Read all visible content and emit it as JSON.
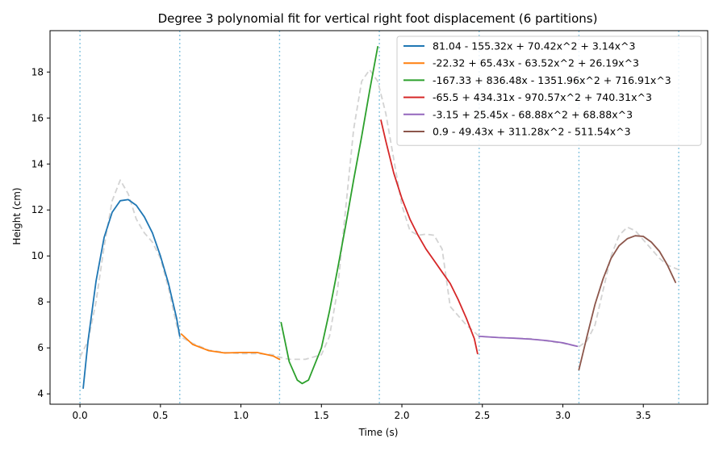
{
  "chart_data": {
    "type": "line",
    "title": "Degree 3 polynomial fit for vertical right foot displacement (6 partitions)",
    "xlabel": "Time (s)",
    "ylabel": "Height (cm)",
    "xlim": [
      -0.186,
      3.9
    ],
    "ylim": [
      3.55,
      19.8
    ],
    "xticks": [
      "0.0",
      "0.5",
      "1.0",
      "1.5",
      "2.0",
      "2.5",
      "3.0",
      "3.5"
    ],
    "yticks": [
      "4",
      "6",
      "8",
      "10",
      "12",
      "14",
      "16",
      "18"
    ],
    "xtick_values": [
      0,
      0.5,
      1.0,
      1.5,
      2.0,
      2.5,
      3.0,
      3.5
    ],
    "ytick_values": [
      4,
      6,
      8,
      10,
      12,
      14,
      16,
      18
    ],
    "partition_boundaries": [
      0.0,
      0.62,
      1.24,
      1.86,
      2.48,
      3.1,
      3.72
    ],
    "legend_position": "upper right",
    "grid": false,
    "raw_signal": {
      "color": "#d3d3d3",
      "style": "dashed",
      "points": [
        [
          0.0,
          5.6
        ],
        [
          0.05,
          6.3
        ],
        [
          0.1,
          8.0
        ],
        [
          0.15,
          10.4
        ],
        [
          0.2,
          12.4
        ],
        [
          0.25,
          13.3
        ],
        [
          0.3,
          12.7
        ],
        [
          0.35,
          11.6
        ],
        [
          0.4,
          11.0
        ],
        [
          0.45,
          10.6
        ],
        [
          0.5,
          9.9
        ],
        [
          0.55,
          8.6
        ],
        [
          0.6,
          7.0
        ],
        [
          0.62,
          6.5
        ],
        [
          0.7,
          6.2
        ],
        [
          0.8,
          5.9
        ],
        [
          0.9,
          5.8
        ],
        [
          1.0,
          5.75
        ],
        [
          1.1,
          5.75
        ],
        [
          1.2,
          5.7
        ],
        [
          1.24,
          5.6
        ],
        [
          1.3,
          5.5
        ],
        [
          1.4,
          5.5
        ],
        [
          1.5,
          5.7
        ],
        [
          1.55,
          6.5
        ],
        [
          1.6,
          8.5
        ],
        [
          1.65,
          12.0
        ],
        [
          1.7,
          15.5
        ],
        [
          1.75,
          17.6
        ],
        [
          1.8,
          18.1
        ],
        [
          1.85,
          17.6
        ],
        [
          1.9,
          16.2
        ],
        [
          1.95,
          14.2
        ],
        [
          2.0,
          12.2
        ],
        [
          2.05,
          11.1
        ],
        [
          2.1,
          10.9
        ],
        [
          2.15,
          10.95
        ],
        [
          2.2,
          10.9
        ],
        [
          2.25,
          10.3
        ],
        [
          2.3,
          7.8
        ],
        [
          2.35,
          7.4
        ],
        [
          2.4,
          7.0
        ],
        [
          2.48,
          6.5
        ],
        [
          2.6,
          6.45
        ],
        [
          2.8,
          6.4
        ],
        [
          3.0,
          6.2
        ],
        [
          3.1,
          6.05
        ],
        [
          3.15,
          6.3
        ],
        [
          3.2,
          7.0
        ],
        [
          3.25,
          8.5
        ],
        [
          3.3,
          10.0
        ],
        [
          3.35,
          10.9
        ],
        [
          3.4,
          11.25
        ],
        [
          3.45,
          11.1
        ],
        [
          3.5,
          10.7
        ],
        [
          3.55,
          10.3
        ],
        [
          3.6,
          9.9
        ],
        [
          3.65,
          9.6
        ],
        [
          3.72,
          9.4
        ]
      ]
    },
    "series": [
      {
        "name": "81.04 - 155.32x + 70.42x^2 + 3.14x^3",
        "color": "#1f77b4",
        "points": [
          [
            0.02,
            4.25
          ],
          [
            0.05,
            6.3
          ],
          [
            0.1,
            8.9
          ],
          [
            0.15,
            10.8
          ],
          [
            0.2,
            11.9
          ],
          [
            0.25,
            12.4
          ],
          [
            0.3,
            12.45
          ],
          [
            0.35,
            12.2
          ],
          [
            0.4,
            11.7
          ],
          [
            0.45,
            11.0
          ],
          [
            0.5,
            10.0
          ],
          [
            0.55,
            8.8
          ],
          [
            0.6,
            7.3
          ],
          [
            0.62,
            6.5
          ]
        ]
      },
      {
        "name": "-22.32 + 65.43x - 63.52x^2 + 26.19x^3",
        "color": "#ff7f0e",
        "points": [
          [
            0.63,
            6.6
          ],
          [
            0.7,
            6.15
          ],
          [
            0.8,
            5.88
          ],
          [
            0.9,
            5.78
          ],
          [
            1.0,
            5.8
          ],
          [
            1.1,
            5.8
          ],
          [
            1.2,
            5.65
          ],
          [
            1.24,
            5.5
          ]
        ]
      },
      {
        "name": "-167.33 + 836.48x - 1351.96x^2 + 716.91x^3",
        "color": "#2ca02c",
        "points": [
          [
            1.25,
            7.1
          ],
          [
            1.3,
            5.4
          ],
          [
            1.35,
            4.6
          ],
          [
            1.38,
            4.45
          ],
          [
            1.42,
            4.6
          ],
          [
            1.5,
            6.0
          ],
          [
            1.55,
            7.6
          ],
          [
            1.6,
            9.4
          ],
          [
            1.65,
            11.3
          ],
          [
            1.7,
            13.3
          ],
          [
            1.75,
            15.2
          ],
          [
            1.8,
            17.2
          ],
          [
            1.85,
            19.1
          ]
        ]
      },
      {
        "name": "-65.5 + 434.31x - 970.57x^2 + 740.31x^3",
        "color": "#d62728",
        "points": [
          [
            1.87,
            15.9
          ],
          [
            1.9,
            15.0
          ],
          [
            1.95,
            13.6
          ],
          [
            2.0,
            12.5
          ],
          [
            2.05,
            11.6
          ],
          [
            2.1,
            10.9
          ],
          [
            2.15,
            10.3
          ],
          [
            2.2,
            9.8
          ],
          [
            2.25,
            9.3
          ],
          [
            2.3,
            8.8
          ],
          [
            2.35,
            8.1
          ],
          [
            2.4,
            7.3
          ],
          [
            2.45,
            6.4
          ],
          [
            2.47,
            5.75
          ]
        ]
      },
      {
        "name": "-3.15 + 25.45x - 68.88x^2 + 68.88x^3",
        "color": "#9467bd",
        "points": [
          [
            2.48,
            6.5
          ],
          [
            2.6,
            6.45
          ],
          [
            2.7,
            6.42
          ],
          [
            2.8,
            6.38
          ],
          [
            2.9,
            6.32
          ],
          [
            3.0,
            6.22
          ],
          [
            3.09,
            6.07
          ]
        ]
      },
      {
        "name": "0.9 - 49.43x + 311.28x^2 - 511.54x^3",
        "color": "#8c564b",
        "points": [
          [
            3.1,
            5.05
          ],
          [
            3.15,
            6.5
          ],
          [
            3.2,
            7.9
          ],
          [
            3.25,
            9.0
          ],
          [
            3.3,
            9.9
          ],
          [
            3.35,
            10.45
          ],
          [
            3.4,
            10.75
          ],
          [
            3.45,
            10.88
          ],
          [
            3.5,
            10.85
          ],
          [
            3.55,
            10.6
          ],
          [
            3.6,
            10.2
          ],
          [
            3.65,
            9.6
          ],
          [
            3.7,
            8.85
          ]
        ]
      }
    ]
  }
}
